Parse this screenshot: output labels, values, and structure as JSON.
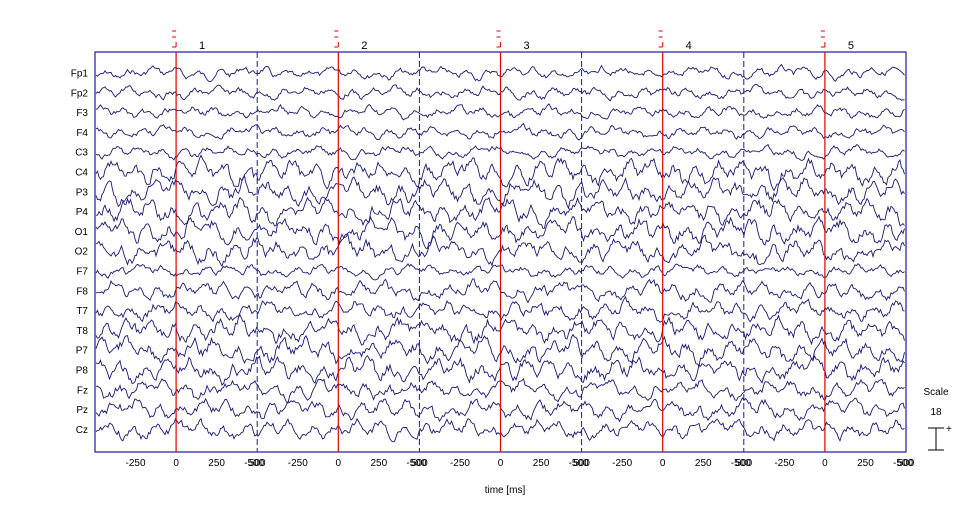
{
  "chart_data": {
    "type": "line",
    "title": "",
    "xlabel": "time  [ms]",
    "ylabel": "",
    "epoch_window_ms": [
      -500,
      500
    ],
    "epochs": [
      1,
      2,
      3,
      4,
      5
    ],
    "event_time_ms": 0,
    "x_tick_labels": [
      "-250",
      "0",
      "250",
      "500",
      "-500"
    ],
    "first_tick_label": "-250",
    "channels": [
      "Fp1",
      "Fp2",
      "F3",
      "F4",
      "C3",
      "C4",
      "P3",
      "P4",
      "O1",
      "O2",
      "F7",
      "F8",
      "T7",
      "T8",
      "P7",
      "P8",
      "Fz",
      "Pz",
      "Cz"
    ],
    "scale": {
      "label": "Scale",
      "value": "18"
    },
    "grid": false,
    "colors": {
      "trace": "#1a1a6e",
      "event_marker": "#e00000",
      "epoch_boundary": "#1a1aa0",
      "frame": "#1a1aa0"
    }
  }
}
